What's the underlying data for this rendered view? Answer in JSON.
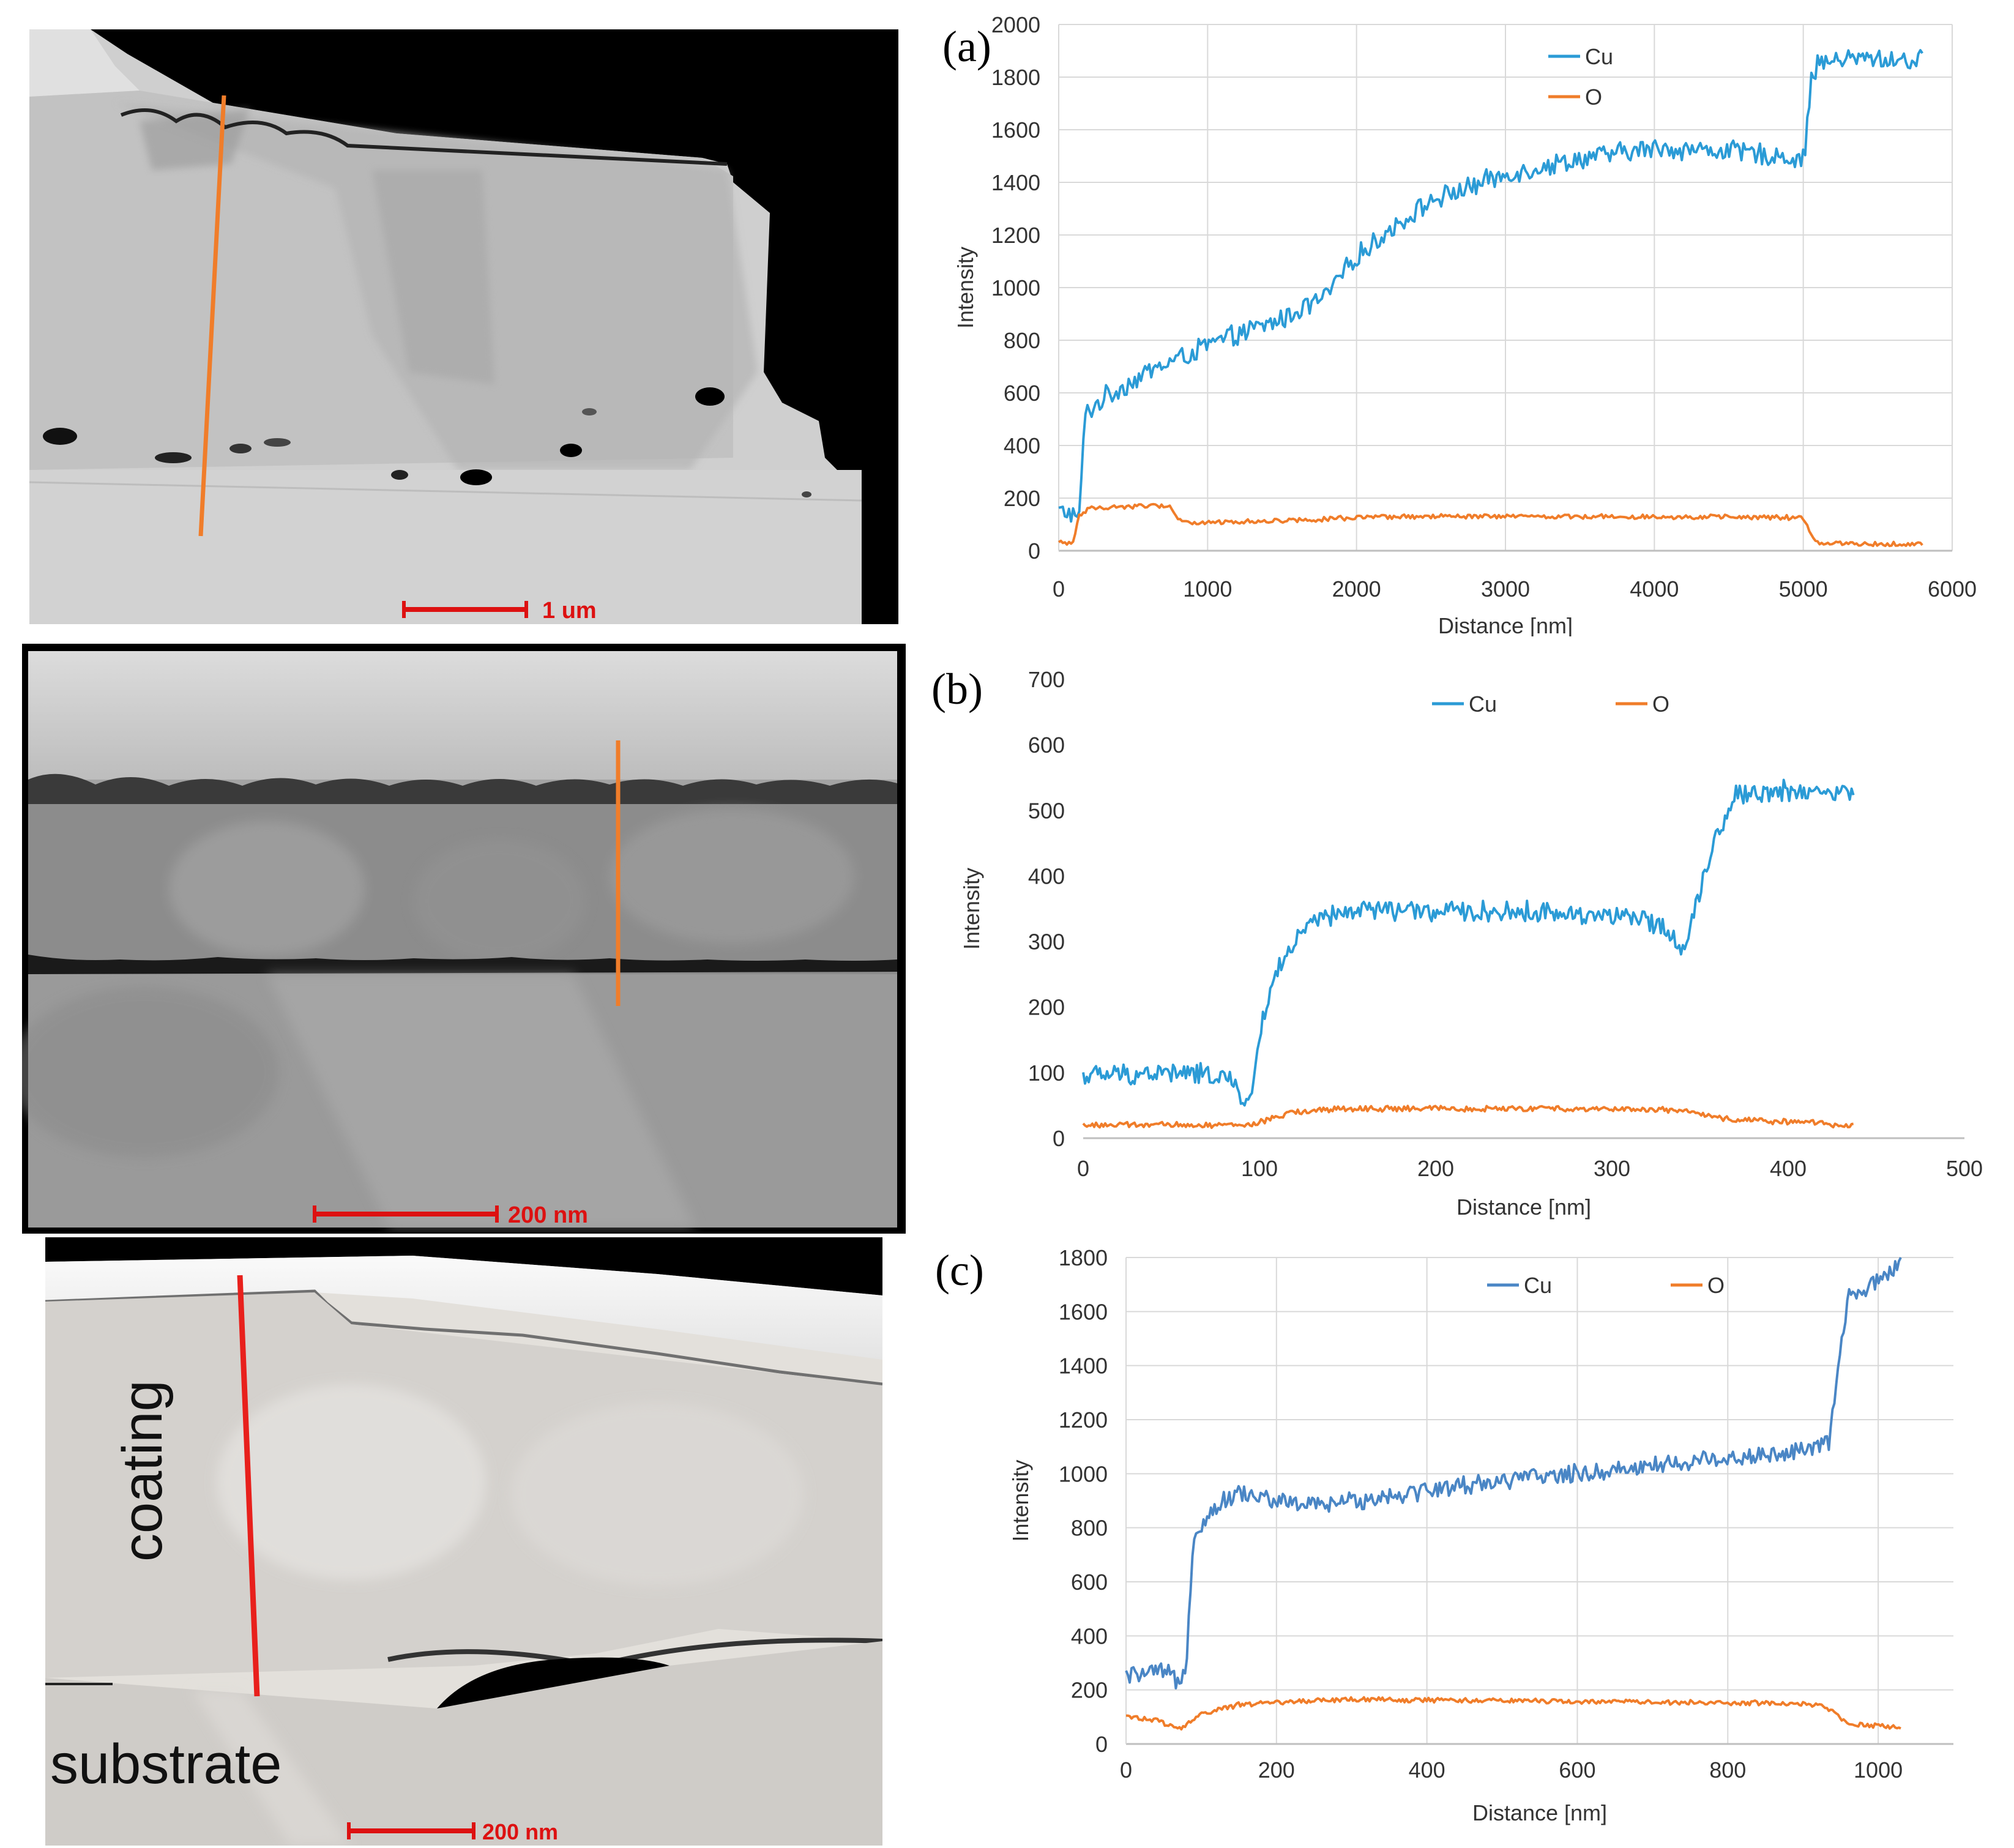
{
  "colors": {
    "cu": "#2b9bd6",
    "o": "#f07d2a",
    "cu_c": "#4a86c5",
    "o_c": "#f07d2a",
    "grid": "#d9d9d9"
  },
  "images": [
    {
      "scalebar_label": "1 um"
    },
    {
      "scalebar_label": "200 nm"
    },
    {
      "scalebar_label": "200 nm",
      "coating_label": "coating",
      "substrate_label": "substrate"
    }
  ],
  "chart_data": [
    {
      "type": "line",
      "panel": "(a)",
      "xlabel": "Distance [nm]",
      "ylabel": "Intensity",
      "xlim": [
        0,
        6000
      ],
      "ylim": [
        0,
        2000
      ],
      "xticks": [
        0,
        1000,
        2000,
        3000,
        4000,
        5000,
        6000
      ],
      "yticks": [
        0,
        200,
        400,
        600,
        800,
        1000,
        1200,
        1400,
        1600,
        1800,
        2000
      ],
      "xtick_labels": [
        "0",
        "1000",
        "2000",
        "3000",
        "4000",
        "5000",
        "6000"
      ],
      "ytick_labels": [
        "0",
        "200",
        "400",
        "600",
        "800",
        "1000",
        "1200",
        "1400",
        "1600",
        "1800",
        "2000"
      ],
      "legend": "top-center",
      "grid": true,
      "noise": {
        "cu": 45,
        "o": 10
      },
      "series": [
        {
          "name": "Cu",
          "x": [
            0,
            100,
            130,
            180,
            300,
            600,
            1000,
            1500,
            1800,
            2000,
            2300,
            2500,
            3000,
            3500,
            4000,
            4500,
            5000,
            5020,
            5050,
            5100,
            5300,
            5500,
            5800
          ],
          "values": [
            150,
            140,
            90,
            520,
            580,
            680,
            780,
            880,
            970,
            1120,
            1250,
            1330,
            1430,
            1490,
            1530,
            1520,
            1490,
            1560,
            1800,
            1850,
            1870,
            1870,
            1860
          ]
        },
        {
          "name": "O",
          "x": [
            0,
            100,
            130,
            200,
            500,
            750,
            800,
            900,
            1500,
            2000,
            2500,
            3000,
            4000,
            5000,
            5050,
            5100,
            5500,
            5800
          ],
          "values": [
            30,
            30,
            130,
            160,
            170,
            170,
            120,
            105,
            115,
            125,
            130,
            130,
            130,
            125,
            60,
            30,
            25,
            25
          ]
        }
      ]
    },
    {
      "type": "line",
      "panel": "(b)",
      "xlabel": "Distance [nm]",
      "ylabel": "Intensity",
      "xlim": [
        0,
        500
      ],
      "ylim": [
        0,
        700
      ],
      "xticks": [
        0,
        100,
        200,
        300,
        400,
        500
      ],
      "yticks": [
        0,
        100,
        200,
        300,
        400,
        500,
        600,
        700
      ],
      "xtick_labels": [
        "0",
        "100",
        "200",
        "300",
        "400",
        "500"
      ],
      "ytick_labels": [
        "0",
        "100",
        "200",
        "300",
        "400",
        "500",
        "600",
        "700"
      ],
      "legend": "top-center",
      "grid": false,
      "noise": {
        "cu": 18,
        "o": 5
      },
      "series": [
        {
          "name": "Cu",
          "x": [
            0,
            50,
            80,
            95,
            100,
            110,
            130,
            160,
            200,
            250,
            300,
            330,
            340,
            345,
            355,
            370,
            400,
            437
          ],
          "values": [
            95,
            100,
            95,
            50,
            160,
            260,
            330,
            350,
            345,
            345,
            340,
            325,
            285,
            330,
            430,
            525,
            530,
            525
          ]
        },
        {
          "name": "O",
          "x": [
            0,
            80,
            95,
            120,
            150,
            200,
            250,
            300,
            340,
            360,
            400,
            437
          ],
          "values": [
            20,
            20,
            20,
            40,
            45,
            45,
            45,
            45,
            42,
            30,
            25,
            20
          ]
        }
      ]
    },
    {
      "type": "line",
      "panel": "(c)",
      "xlabel": "Distance [nm]",
      "ylabel": "Intensity",
      "xlim": [
        0,
        1100
      ],
      "ylim": [
        0,
        1800
      ],
      "xticks": [
        0,
        200,
        400,
        600,
        800,
        1000
      ],
      "yticks": [
        0,
        200,
        400,
        600,
        800,
        1000,
        1200,
        1400,
        1600,
        1800
      ],
      "xtick_labels": [
        "0",
        "200",
        "400",
        "600",
        "800",
        "1000"
      ],
      "ytick_labels": [
        "0",
        "200",
        "400",
        "600",
        "800",
        "1000",
        "1200",
        "1400",
        "1600",
        "1800"
      ],
      "legend": "top-center",
      "grid": true,
      "noise": {
        "cu": 40,
        "o": 10
      },
      "series": [
        {
          "name": "Cu",
          "x": [
            0,
            50,
            70,
            80,
            90,
            120,
            150,
            200,
            250,
            300,
            400,
            500,
            600,
            700,
            800,
            900,
            935,
            945,
            960,
            1000,
            1030
          ],
          "values": [
            250,
            265,
            230,
            300,
            780,
            880,
            930,
            900,
            880,
            900,
            940,
            975,
            1000,
            1030,
            1060,
            1080,
            1120,
            1350,
            1650,
            1710,
            1780
          ]
        },
        {
          "name": "O",
          "x": [
            0,
            40,
            70,
            100,
            150,
            200,
            300,
            500,
            700,
            900,
            930,
            960,
            1030
          ],
          "values": [
            100,
            90,
            55,
            110,
            145,
            155,
            165,
            160,
            155,
            150,
            140,
            75,
            60
          ]
        }
      ]
    }
  ]
}
